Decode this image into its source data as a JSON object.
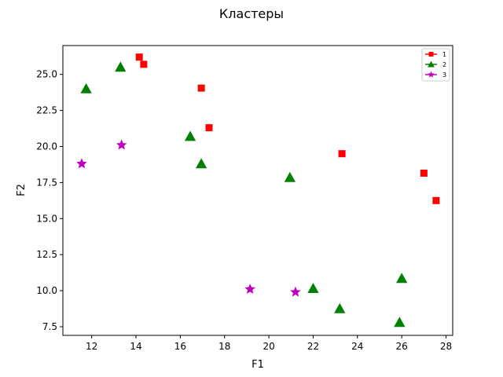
{
  "chart_data": {
    "type": "scatter",
    "title": "Кластеры",
    "xlabel": "F1",
    "ylabel": "F2",
    "xlim": [
      10.7,
      28.3
    ],
    "ylim": [
      6.9,
      27.0
    ],
    "xticks": [
      12,
      14,
      16,
      18,
      20,
      22,
      24,
      26,
      28
    ],
    "xtick_labels": [
      "12",
      "14",
      "16",
      "18",
      "20",
      "22",
      "24",
      "26",
      "28"
    ],
    "yticks": [
      7.5,
      10.0,
      12.5,
      15.0,
      17.5,
      20.0,
      22.5,
      25.0
    ],
    "ytick_labels": [
      "7.5",
      "10.0",
      "12.5",
      "15.0",
      "17.5",
      "20.0",
      "22.5",
      "25.0"
    ],
    "grid": false,
    "legend_position": "top-right",
    "series": [
      {
        "name": "1",
        "color": "#ff0000",
        "marker": "square",
        "x": [
          14.15,
          14.35,
          16.95,
          17.3,
          23.3,
          27.0,
          27.55
        ],
        "y": [
          26.2,
          25.7,
          24.05,
          21.3,
          19.5,
          18.15,
          16.25
        ]
      },
      {
        "name": "2",
        "color": "#008000",
        "marker": "triangle",
        "x": [
          11.75,
          13.3,
          16.45,
          16.95,
          20.95,
          22.0,
          23.2,
          25.9,
          26.0
        ],
        "y": [
          24.0,
          25.5,
          20.7,
          18.8,
          17.85,
          10.15,
          8.75,
          7.8,
          10.85
        ]
      },
      {
        "name": "3",
        "color": "#bf00bf",
        "marker": "star",
        "x": [
          11.55,
          13.35,
          19.15,
          21.2
        ],
        "y": [
          18.8,
          20.1,
          10.1,
          9.9
        ]
      }
    ]
  }
}
